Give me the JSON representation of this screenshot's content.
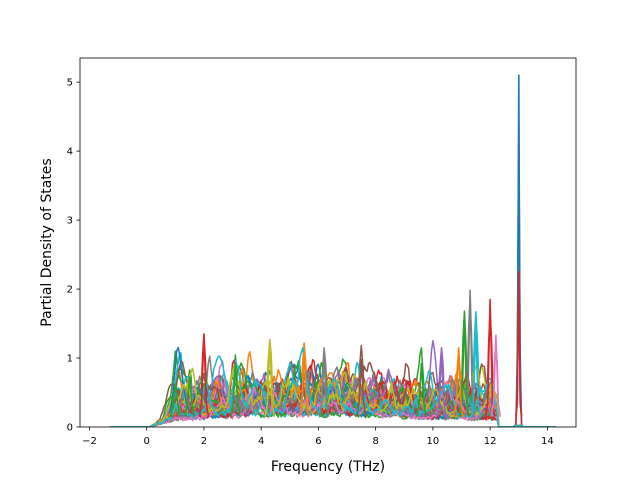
{
  "chart_data": {
    "type": "line",
    "title": "",
    "xlabel": "Frequency (THz)",
    "ylabel": "Partial Density of States",
    "xlim": [
      -2.33,
      15.0
    ],
    "ylim": [
      0,
      5.35
    ],
    "xticks": [
      -2,
      0,
      2,
      4,
      6,
      8,
      10,
      12,
      14
    ],
    "yticks": [
      0,
      1,
      2,
      3,
      4,
      5
    ],
    "grid": false,
    "legend": "none",
    "series_colors": [
      "#1f77b4",
      "#ff7f0e",
      "#2ca02c",
      "#d62728",
      "#9467bd",
      "#8c564b",
      "#e377c2",
      "#7f7f7f",
      "#bcbd22",
      "#17becf"
    ],
    "series_count": 40,
    "x_range": [
      -1.3,
      14.3
    ],
    "notable_peaks": [
      {
        "x": 13.0,
        "y": 5.1,
        "color": "#1f77b4"
      },
      {
        "x": 13.0,
        "y": 2.25,
        "color": "#d62728"
      },
      {
        "x": 11.3,
        "y": 1.98,
        "color": "#7f7f7f"
      },
      {
        "x": 12.0,
        "y": 1.85,
        "color": "#d62728"
      },
      {
        "x": 11.1,
        "y": 1.65,
        "color": "#2ca02c"
      },
      {
        "x": 11.5,
        "y": 1.45,
        "color": "#17becf"
      },
      {
        "x": 2.0,
        "y": 1.35,
        "color": "#d62728"
      },
      {
        "x": 12.2,
        "y": 1.33,
        "color": "#e377c2"
      },
      {
        "x": 4.3,
        "y": 1.25,
        "color": "#bcbd22"
      },
      {
        "x": 10.9,
        "y": 1.15,
        "color": "#ff7f0e"
      },
      {
        "x": 5.5,
        "y": 1.08,
        "color": "#ff7f0e"
      },
      {
        "x": 10.3,
        "y": 1.05,
        "color": "#9467bd"
      },
      {
        "x": 6.2,
        "y": 1.0,
        "color": "#7f7f7f"
      },
      {
        "x": 7.5,
        "y": 0.98,
        "color": "#8c564b"
      },
      {
        "x": 3.1,
        "y": 0.93,
        "color": "#2ca02c"
      },
      {
        "x": 9.6,
        "y": 0.92,
        "color": "#2ca02c"
      },
      {
        "x": 1.0,
        "y": 0.62,
        "color": "#2ca02c"
      },
      {
        "x": 1.5,
        "y": 0.72,
        "color": "#2ca02c"
      }
    ]
  }
}
